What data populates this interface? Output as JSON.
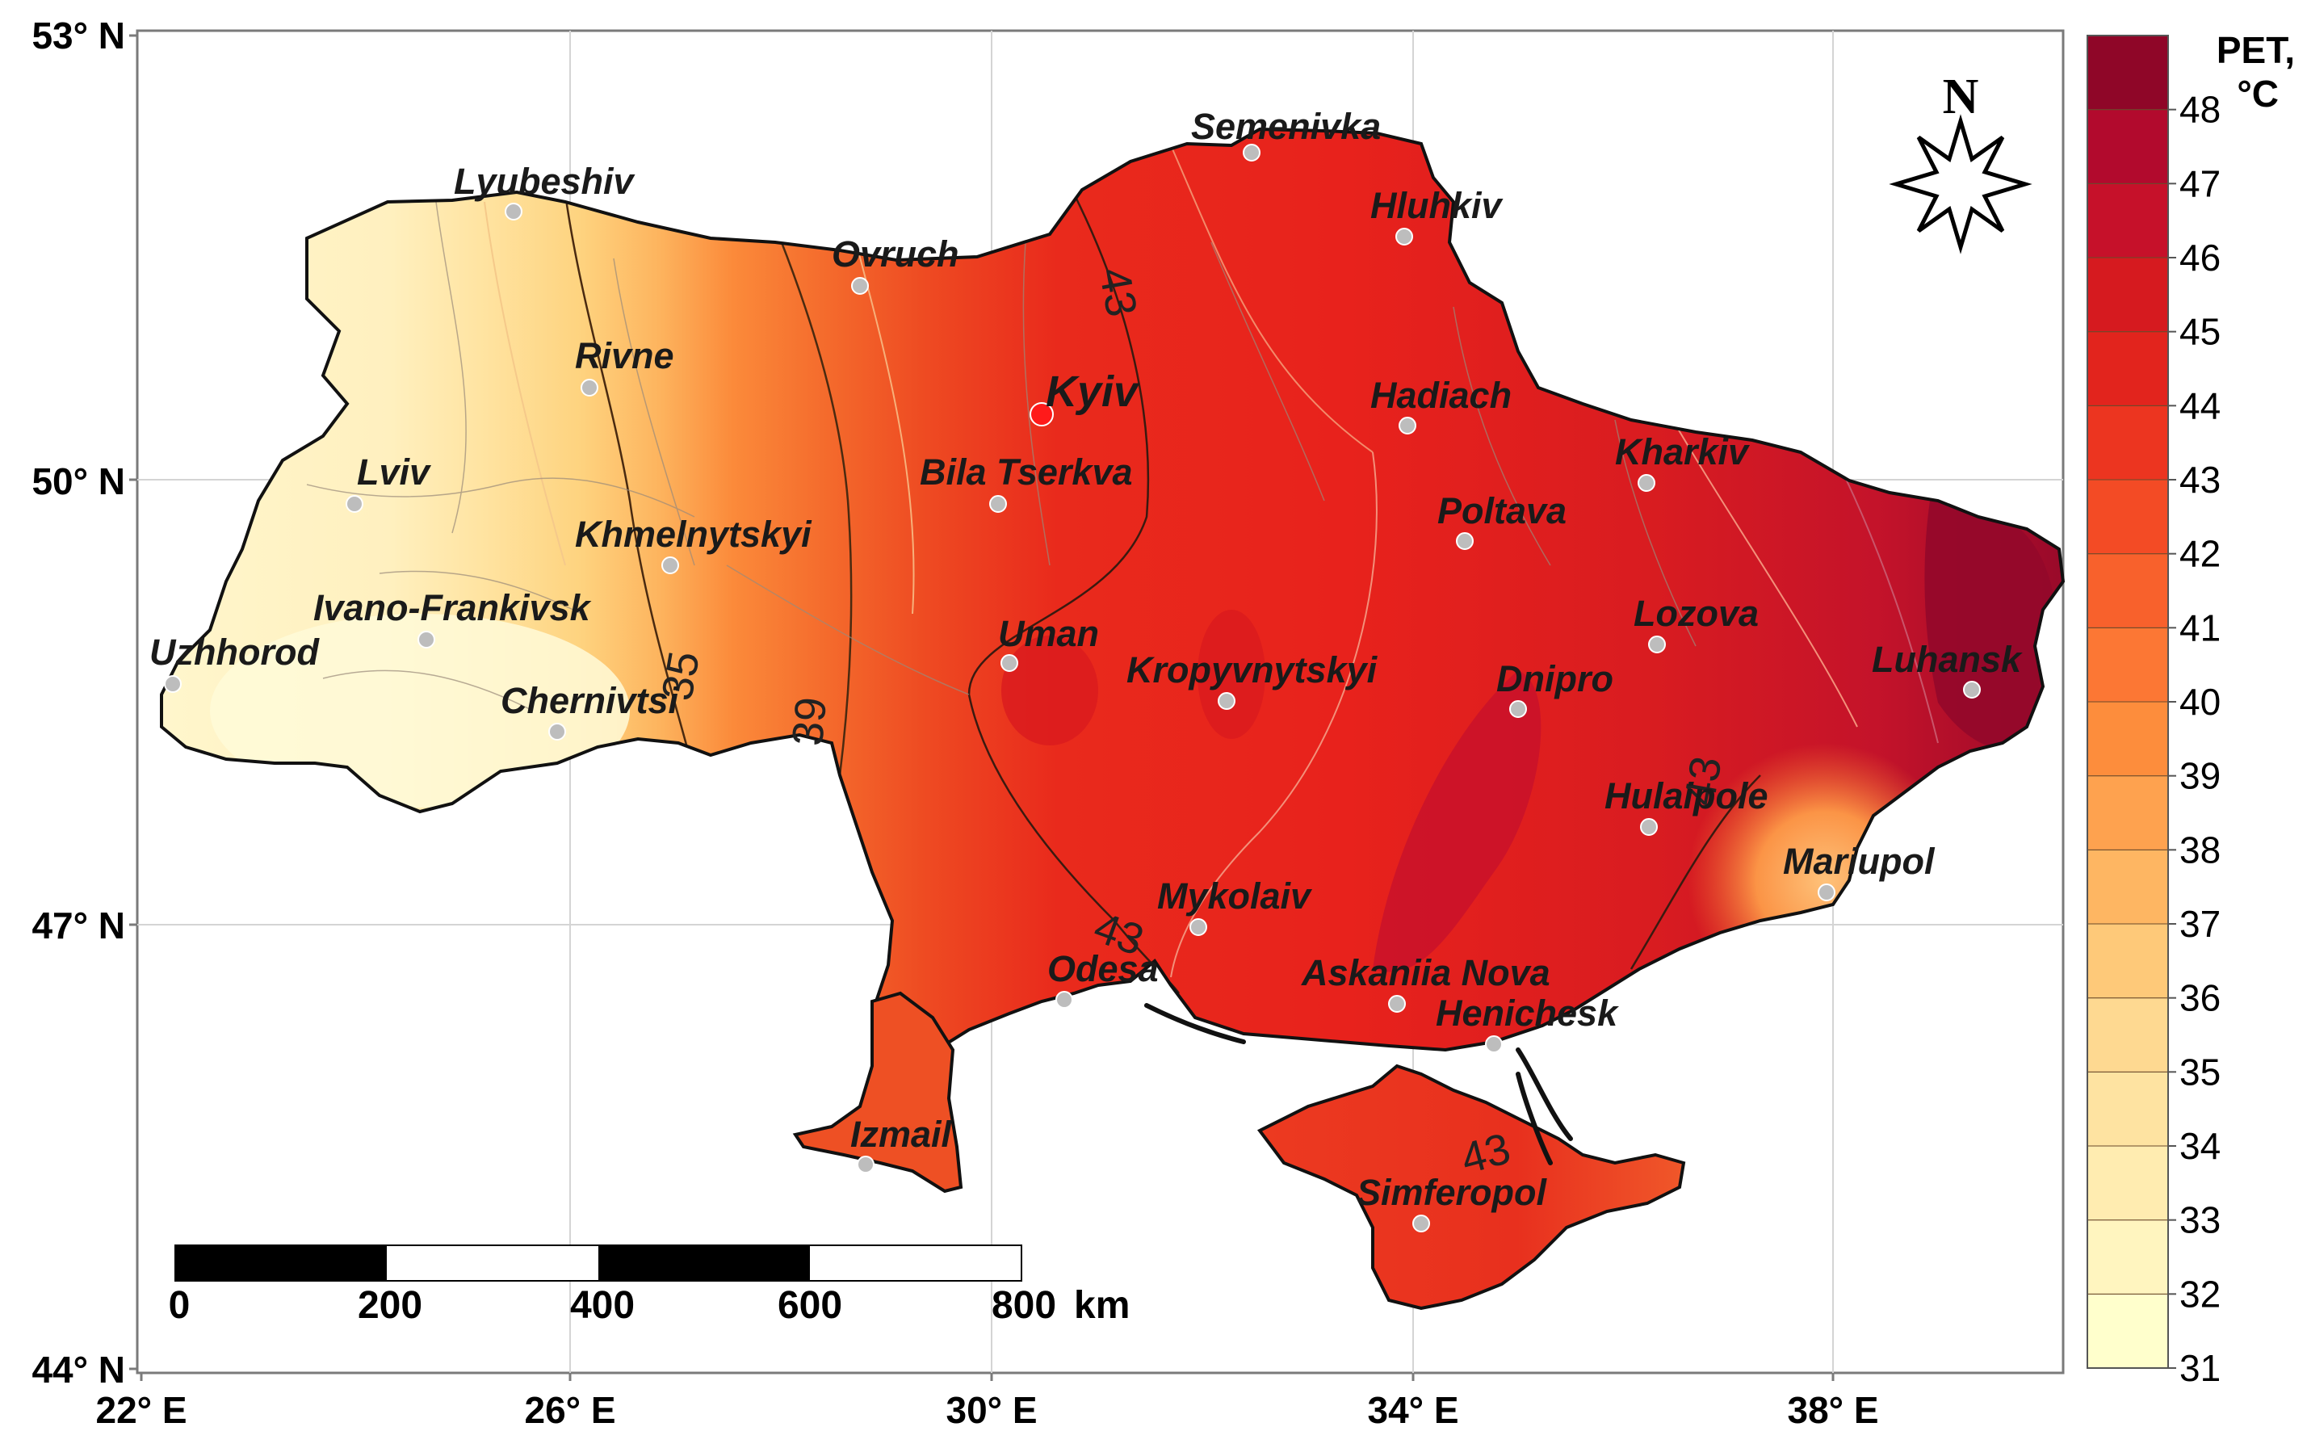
{
  "map": {
    "latitude_ticks": [
      {
        "label": "53° N",
        "lat": 53
      },
      {
        "label": "50° N",
        "lat": 50
      },
      {
        "label": "47° N",
        "lat": 47
      },
      {
        "label": "44° N",
        "lat": 44
      }
    ],
    "longitude_ticks": [
      {
        "label": "22° E",
        "lon": 22
      },
      {
        "label": "26° E",
        "lon": 26
      },
      {
        "label": "30° E",
        "lon": 30
      },
      {
        "label": "34° E",
        "lon": 34
      },
      {
        "label": "38° E",
        "lon": 38
      }
    ],
    "capital": {
      "name": "Kyiv",
      "color": "#ff1a1a"
    },
    "cities": [
      {
        "name": "Semenivka"
      },
      {
        "name": "Lyubeshiv"
      },
      {
        "name": "Hluhkiv"
      },
      {
        "name": "Ovruch"
      },
      {
        "name": "Rivne"
      },
      {
        "name": "Hadiach"
      },
      {
        "name": "Lviv"
      },
      {
        "name": "Bila Tserkva"
      },
      {
        "name": "Kharkiv"
      },
      {
        "name": "Poltava"
      },
      {
        "name": "Khmelnytskyi"
      },
      {
        "name": "Ivano-Frankivsk"
      },
      {
        "name": "Lozova"
      },
      {
        "name": "Uman"
      },
      {
        "name": "Uzhhorod"
      },
      {
        "name": "Kropyvnytskyi"
      },
      {
        "name": "Dnipro"
      },
      {
        "name": "Luhansk"
      },
      {
        "name": "Chernivtsi"
      },
      {
        "name": "Hulaipole"
      },
      {
        "name": "Mariupol"
      },
      {
        "name": "Mykolaiv"
      },
      {
        "name": "Odesa"
      },
      {
        "name": "Askaniia Nova"
      },
      {
        "name": "Henichesk"
      },
      {
        "name": "Izmail"
      },
      {
        "name": "Simferopol"
      }
    ],
    "isoline_labels": [
      "43",
      "35",
      "39",
      "43",
      "43",
      "43"
    ],
    "north_arrow_label": "N",
    "scale_bar": {
      "ticks": [
        "0",
        "200",
        "400",
        "600",
        "800"
      ],
      "unit": "km"
    },
    "legend": {
      "title_line1": "PET,",
      "title_line2": "°C",
      "min": 31,
      "max": 49,
      "tick_values": [
        "48",
        "47",
        "46",
        "45",
        "44",
        "43",
        "42",
        "41",
        "40",
        "39",
        "38",
        "37",
        "36",
        "35",
        "34",
        "33",
        "32",
        "31"
      ],
      "colors": [
        "#ffffcc",
        "#fff5bf",
        "#ffecb0",
        "#fee3a1",
        "#fed991",
        "#fec979",
        "#feb662",
        "#fea24f",
        "#fd8d3c",
        "#fc7734",
        "#f8612c",
        "#f34b25",
        "#ec3520",
        "#e2241d",
        "#d61a1f",
        "#c6112a",
        "#b20a2d",
        "#8f0628"
      ]
    }
  }
}
